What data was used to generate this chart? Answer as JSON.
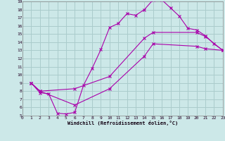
{
  "xlabel": "Windchill (Refroidissement éolien,°C)",
  "xlim": [
    0,
    23
  ],
  "ylim": [
    5,
    19
  ],
  "xticks": [
    0,
    1,
    2,
    3,
    4,
    5,
    6,
    7,
    8,
    9,
    10,
    11,
    12,
    13,
    14,
    15,
    16,
    17,
    18,
    19,
    20,
    21,
    22,
    23
  ],
  "yticks": [
    5,
    6,
    7,
    8,
    9,
    10,
    11,
    12,
    13,
    14,
    15,
    16,
    17,
    18,
    19
  ],
  "bg_color": "#cce8e8",
  "grid_color": "#aacccc",
  "line_color": "#aa00aa",
  "line1_x": [
    1,
    2,
    3,
    4,
    5,
    6,
    7,
    8,
    9,
    10,
    11,
    12,
    13,
    14,
    15,
    16,
    17,
    18,
    19,
    20,
    21,
    22,
    23
  ],
  "line1_y": [
    9.0,
    7.8,
    7.7,
    5.3,
    5.2,
    5.4,
    8.7,
    10.8,
    13.1,
    15.8,
    16.3,
    17.5,
    17.3,
    18.0,
    19.2,
    19.2,
    18.2,
    17.2,
    15.7,
    15.5,
    14.8,
    13.8,
    13.0
  ],
  "line2_x": [
    1,
    2,
    6,
    10,
    14,
    15,
    20,
    21,
    23
  ],
  "line2_y": [
    9.0,
    8.0,
    8.3,
    9.8,
    14.5,
    15.2,
    15.2,
    14.7,
    13.0
  ],
  "line3_x": [
    1,
    2,
    6,
    10,
    14,
    15,
    20,
    21,
    23
  ],
  "line3_y": [
    9.0,
    8.0,
    6.3,
    8.3,
    12.3,
    13.8,
    13.5,
    13.2,
    13.0
  ]
}
